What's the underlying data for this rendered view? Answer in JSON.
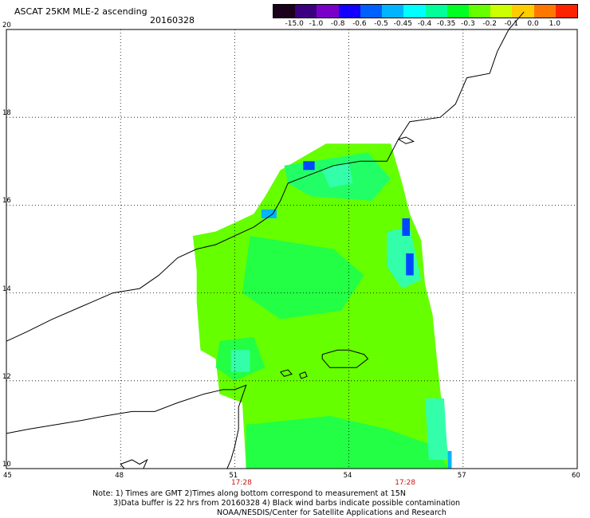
{
  "header": {
    "title": "ASCAT 25KM MLE-2 ascending",
    "date": "20160328"
  },
  "colorbar": {
    "labels": [
      "-15.0",
      "-1.0",
      "-0.8",
      "-0.6",
      "-0.5",
      "-0.45",
      "-0.4",
      "-0.35",
      "-0.3",
      "-0.2",
      "-0.1",
      "0.0",
      "1.0"
    ],
    "colors": [
      "#1a001a",
      "#3a0080",
      "#7a00c8",
      "#1400ff",
      "#0060ff",
      "#00b4ff",
      "#00ffff",
      "#00ff99",
      "#00ff22",
      "#66ff00",
      "#ccff00",
      "#ffcc00",
      "#ff7700",
      "#ff2200"
    ]
  },
  "map": {
    "lon_labels": [
      "45",
      "48",
      "51",
      "54",
      "57",
      "60"
    ],
    "lat_labels": [
      "20",
      "18",
      "16",
      "14",
      "12",
      "10"
    ],
    "lon_range": [
      45,
      60
    ],
    "lat_range": [
      10,
      20
    ],
    "time_labels": [
      {
        "text": "17:28",
        "lon": 51.2
      },
      {
        "text": "17:28",
        "lon": 55.5
      }
    ],
    "swath_color": "#66ff00",
    "coast_color": "#000000"
  },
  "footer": {
    "line1": "Note: 1) Times are GMT 2)Times along bottom correspond to measurement at 15N",
    "line2": "3)Data buffer is 22 hrs from 20160328 4) Black wind barbs indicate possible contamination",
    "line3": "NOAA/NESDIS/Center for Satellite Applications and Research"
  }
}
